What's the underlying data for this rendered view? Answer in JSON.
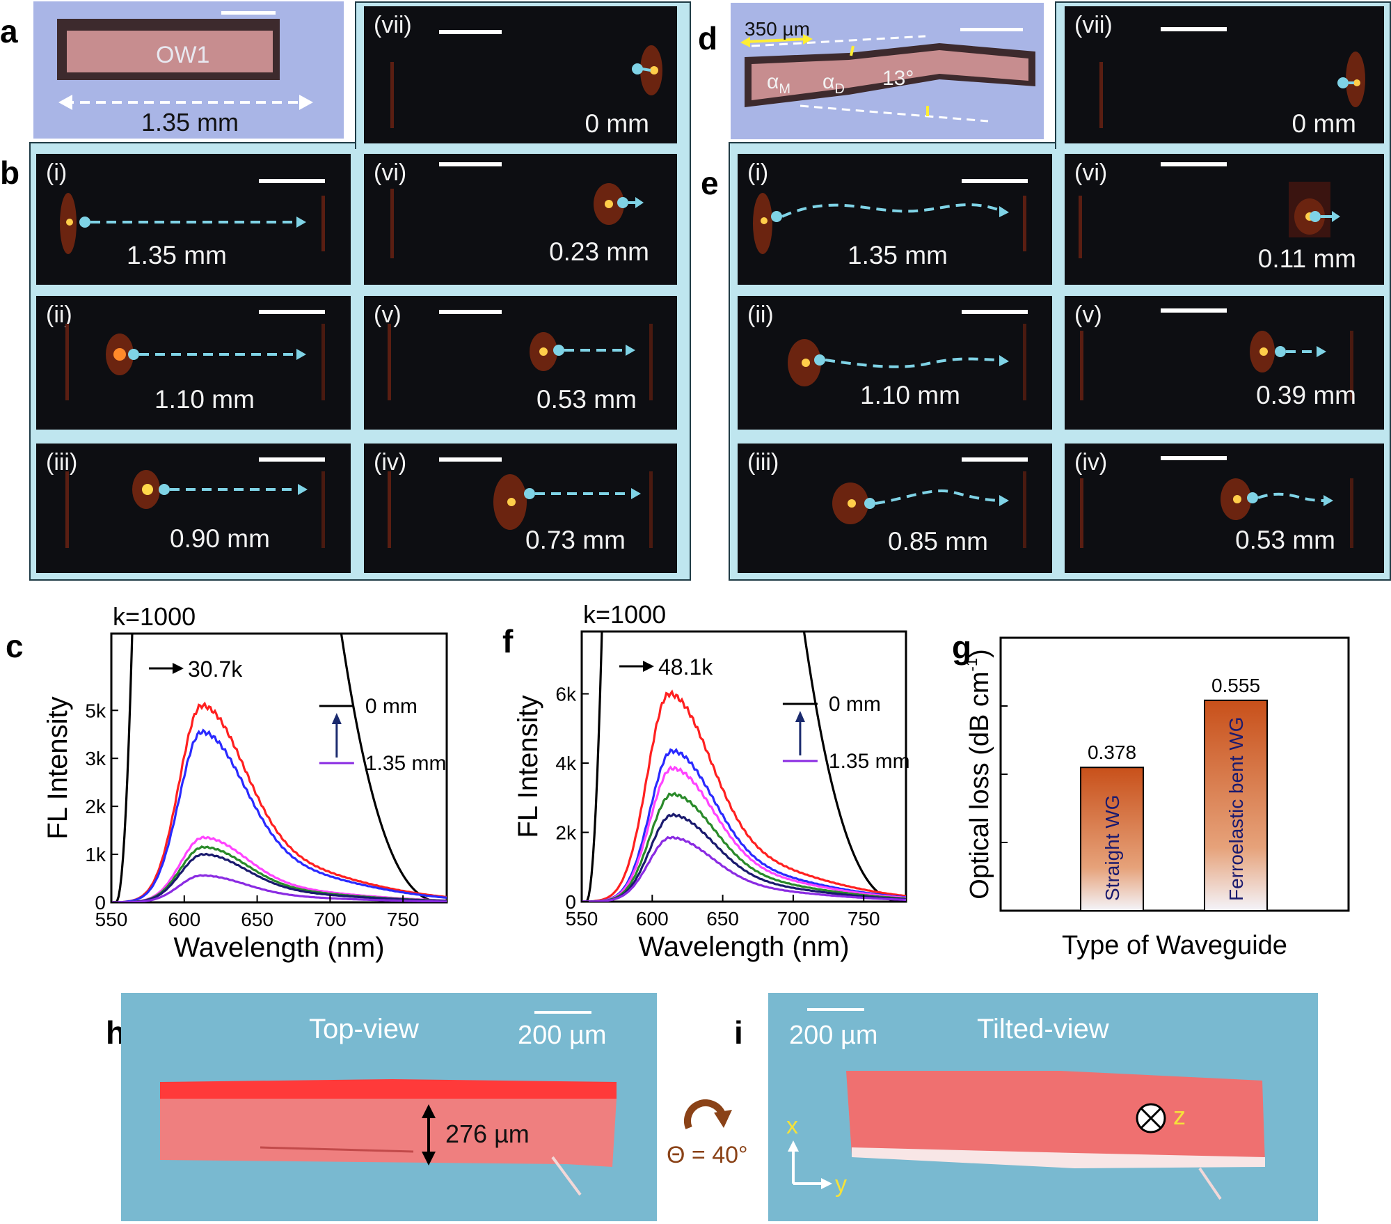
{
  "panels": {
    "a": {
      "letter": "a",
      "crystal_label": "OW1",
      "length_label": "1.35 mm"
    },
    "b": {
      "letter": "b",
      "cells": [
        {
          "roman": "(vii)",
          "distance": "0 mm"
        },
        {
          "roman": "(i)",
          "distance": "1.35 mm"
        },
        {
          "roman": "(vi)",
          "distance": "0.23 mm"
        },
        {
          "roman": "(ii)",
          "distance": "1.10 mm"
        },
        {
          "roman": "(v)",
          "distance": "0.53 mm"
        },
        {
          "roman": "(iii)",
          "distance": "0.90 mm"
        },
        {
          "roman": "(iv)",
          "distance": "0.73 mm"
        }
      ]
    },
    "d": {
      "letter": "d",
      "scale_label": "350 µm",
      "alpha_m": "α",
      "alpha_m_sub": "M",
      "alpha_d": "α",
      "alpha_d_sub": "D",
      "angle_label": "13°"
    },
    "e": {
      "letter": "e",
      "cells": [
        {
          "roman": "(vii)",
          "distance": "0 mm"
        },
        {
          "roman": "(i)",
          "distance": "1.35 mm"
        },
        {
          "roman": "(vi)",
          "distance": "0.11 mm"
        },
        {
          "roman": "(ii)",
          "distance": "1.10 mm"
        },
        {
          "roman": "(v)",
          "distance": "0.39 mm"
        },
        {
          "roman": "(iii)",
          "distance": "0.85 mm"
        },
        {
          "roman": "(iv)",
          "distance": "0.53 mm"
        }
      ]
    },
    "h": {
      "letter": "h",
      "view_label": "Top-view",
      "scale_label": "200 µm",
      "thickness_label": "276 µm"
    },
    "i": {
      "letter": "i",
      "view_label": "Tilted-view",
      "scale_label": "200 µm",
      "axis_x": "x",
      "axis_y": "y",
      "axis_z": "z"
    },
    "rotation": {
      "label": "Θ = 40°"
    }
  },
  "colors": {
    "frame_bg": "#bfe6ef",
    "arrow": "#7fd3e6",
    "crystal": "#ef6e6e",
    "sem_bg": "#79b9d0",
    "rotation": "#8a4217"
  },
  "chart_data": [
    {
      "panel": "c",
      "type": "line",
      "k_label": "k=1000",
      "peak_label": "30.7k",
      "legend_top": "0 mm",
      "legend_bottom": "1.35 mm",
      "xlabel": "Wavelength (nm)",
      "ylabel": "FL Intensity",
      "xlim": [
        550,
        780
      ],
      "ylim": [
        0,
        5600
      ],
      "xticks": [
        550,
        600,
        650,
        700,
        750
      ],
      "yticks": [
        0,
        1000,
        2000,
        3000,
        5000
      ],
      "ytick_labels": [
        "0",
        "1k",
        "2k",
        "3k",
        "5k"
      ],
      "ytick_positions": [
        0,
        1000,
        2000,
        3000,
        4000
      ],
      "series": [
        {
          "color": "#000000",
          "points": [
            [
              555,
              0
            ],
            [
              560,
              2000
            ],
            [
              565,
              5600
            ]
          ],
          "points_right": [
            [
              700,
              5600
            ],
            [
              720,
              4200
            ],
            [
              740,
              2800
            ],
            [
              760,
              1300
            ],
            [
              780,
              0
            ]
          ]
        },
        {
          "color": "#ff2020",
          "peak": 4100,
          "peak_x": 612
        },
        {
          "color": "#2a2aff",
          "peak": 3550,
          "peak_x": 612
        },
        {
          "color": "#ff44ff",
          "peak": 1350,
          "peak_x": 613
        },
        {
          "color": "#2a8a2a",
          "peak": 1150,
          "peak_x": 613
        },
        {
          "color": "#1a1a6e",
          "peak": 1000,
          "peak_x": 613
        },
        {
          "color": "#8a2be2",
          "peak": 560,
          "peak_x": 612
        }
      ]
    },
    {
      "panel": "f",
      "type": "line",
      "k_label": "k=1000",
      "peak_label": "48.1k",
      "legend_top": "0 mm",
      "legend_bottom": "1.35 mm",
      "xlabel": "Wavelength (nm)",
      "ylabel": "FL Intensity",
      "xlim": [
        550,
        780
      ],
      "ylim": [
        0,
        7800
      ],
      "xticks": [
        550,
        600,
        650,
        700,
        750
      ],
      "yticks": [
        0,
        2000,
        4000,
        6000
      ],
      "ytick_labels": [
        "0",
        "2k",
        "4k",
        "6k"
      ],
      "series": [
        {
          "color": "#000000"
        },
        {
          "color": "#ff2020",
          "peak": 6000,
          "peak_x": 612
        },
        {
          "color": "#2a2aff",
          "peak": 4350,
          "peak_x": 614
        },
        {
          "color": "#ff44ff",
          "peak": 3850,
          "peak_x": 614
        },
        {
          "color": "#2a8a2a",
          "peak": 3100,
          "peak_x": 614
        },
        {
          "color": "#1a1a6e",
          "peak": 2500,
          "peak_x": 614
        },
        {
          "color": "#8a2be2",
          "peak": 1850,
          "peak_x": 613
        }
      ]
    },
    {
      "panel": "g",
      "type": "bar",
      "categories": [
        "Straight WG",
        "Ferroelastic bent WG"
      ],
      "values": [
        0.378,
        0.555
      ],
      "value_labels": [
        "0.378",
        "0.555"
      ],
      "xlabel": "Type of Waveguide",
      "ylabel": "Optical loss (dB cm",
      "ylabel_sup": "-1",
      "ylabel_end": ")",
      "ylim": [
        0,
        0.72
      ]
    }
  ]
}
